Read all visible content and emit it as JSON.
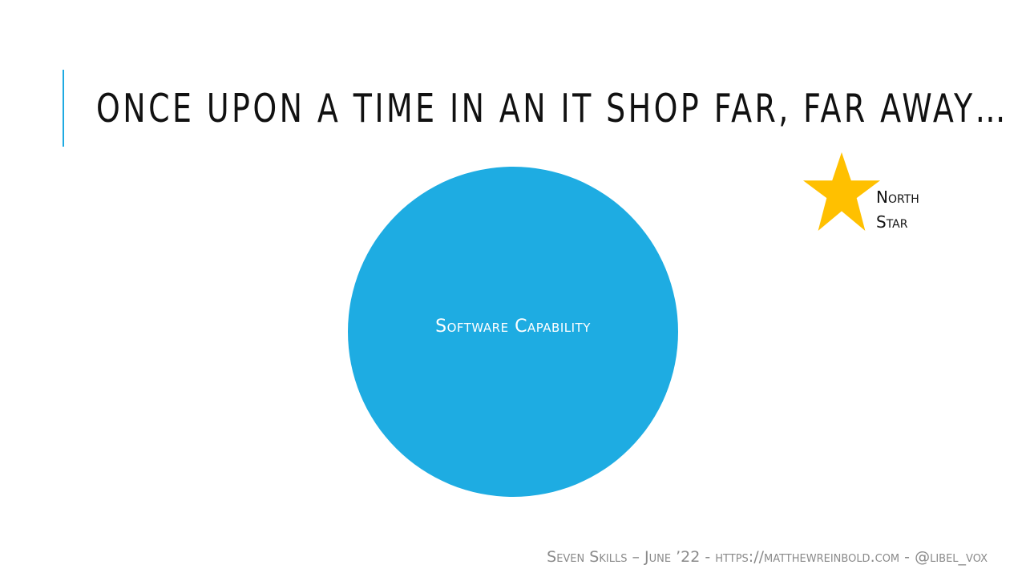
{
  "slide": {
    "title": "Once upon a time in an IT shop far, far away…",
    "circle_label": "Software Capability",
    "star_label_line1": "North",
    "star_label_line2": "Star",
    "footer": "Seven Skills – June ’22 - https://matthewreinbold.com - @libel_vox"
  },
  "colors": {
    "accent": "#1eaae2",
    "circle": "#1eace2",
    "star": "#ffc000",
    "footer_text": "#8a8a8a"
  },
  "icons": {
    "star": "star-icon"
  }
}
